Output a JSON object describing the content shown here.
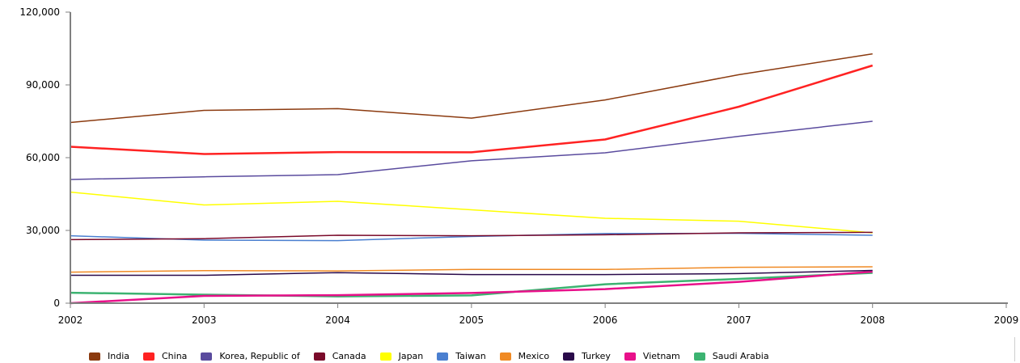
{
  "chart_data": {
    "type": "line",
    "title": "",
    "xlabel": "",
    "ylabel": "",
    "x": [
      2002,
      2003,
      2004,
      2005,
      2006,
      2007,
      2008
    ],
    "xlim": [
      2002,
      2009
    ],
    "xticks": [
      "2002",
      "2003",
      "2004",
      "2005",
      "2006",
      "2007",
      "2008",
      "2009"
    ],
    "ylim": [
      0,
      120000
    ],
    "yticks": [
      "0",
      "30,000",
      "60,000",
      "90,000",
      "120,000"
    ],
    "yticks_values": [
      0,
      30000,
      60000,
      90000,
      120000
    ],
    "grid": false,
    "legend_position": "bottom",
    "series": [
      {
        "name": "India",
        "color": "#8b3a0f",
        "values": [
          74500,
          79500,
          80200,
          76300,
          83800,
          94200,
          102800
        ]
      },
      {
        "name": "China",
        "color": "#ff2222",
        "values": [
          64500,
          61500,
          62300,
          62200,
          67500,
          81000,
          98000
        ]
      },
      {
        "name": "Korea, Republic of",
        "color": "#5a4b9e",
        "values": [
          51000,
          52100,
          53000,
          58700,
          62000,
          68800,
          75000
        ]
      },
      {
        "name": "Canada",
        "color": "#7a0a2a",
        "values": [
          26200,
          26600,
          28000,
          27800,
          28200,
          29000,
          29200
        ]
      },
      {
        "name": "Japan",
        "color": "#ffff00",
        "values": [
          45800,
          40500,
          42000,
          38500,
          35000,
          33800,
          29000
        ]
      },
      {
        "name": "Taiwan",
        "color": "#4a7fd0",
        "values": [
          27800,
          26000,
          25800,
          27500,
          28700,
          28800,
          28000
        ]
      },
      {
        "name": "Mexico",
        "color": "#f08a24",
        "values": [
          12800,
          13400,
          13300,
          13900,
          13900,
          14800,
          15000
        ]
      },
      {
        "name": "Turkey",
        "color": "#2a0a4a",
        "values": [
          11500,
          11500,
          12600,
          11800,
          11800,
          12200,
          13500
        ]
      },
      {
        "name": "Vietnam",
        "color": "#e8108a",
        "values": [
          0,
          3000,
          3300,
          4200,
          5800,
          8800,
          13000
        ]
      },
      {
        "name": "Saudi Arabia",
        "color": "#3cb371",
        "values": [
          4300,
          3500,
          2800,
          3200,
          7800,
          10000,
          12500
        ]
      }
    ]
  }
}
